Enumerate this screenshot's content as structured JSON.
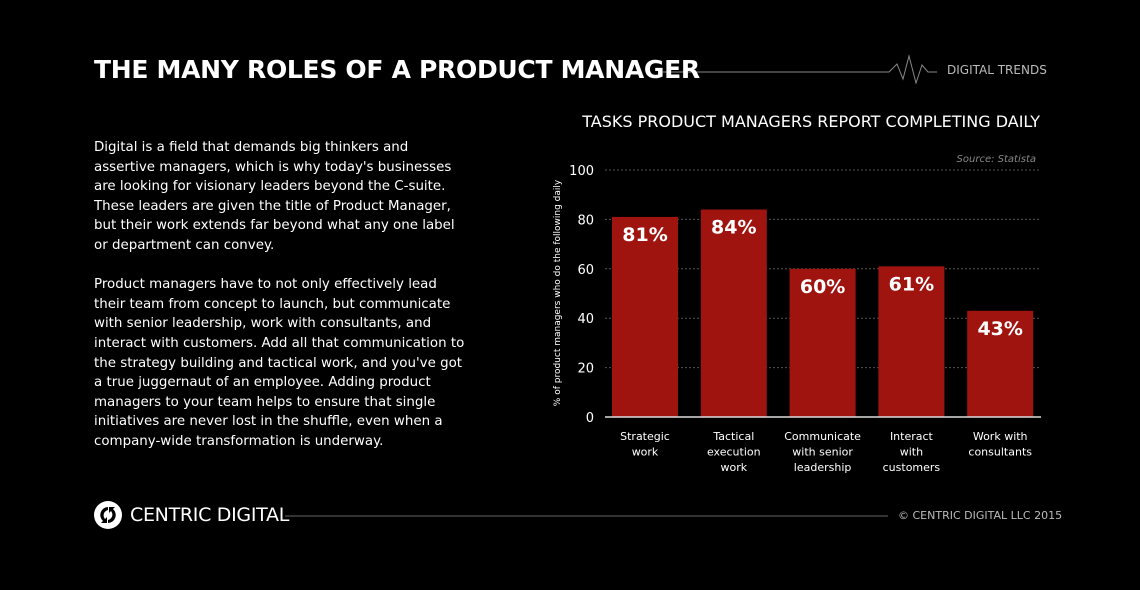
{
  "header": {
    "title": "THE MANY ROLES OF A PRODUCT MANAGER",
    "brand": "DIGITAL TRENDS"
  },
  "body": {
    "paragraphs": [
      "Digital is a field that demands big thinkers and assertive managers, which is why today's businesses are looking for visionary leaders beyond the C-suite. These leaders are given the title of Product Manager, but their work extends far beyond what any one label or department can convey.",
      "Product managers have to not only effectively lead their team from concept to launch, but communicate with senior leadership, work with consultants, and interact with customers. Add all that communication to the strategy building and tactical work, and you've got a true juggernaut of an employee. Adding product managers to your team helps to ensure that single initiatives are never lost in the shuffle, even when a company-wide transformation is underway."
    ]
  },
  "chart_data": {
    "type": "bar",
    "title": "TASKS PRODUCT MANAGERS REPORT COMPLETING DAILY",
    "source": "Source: Statista",
    "ylabel": "% of product managers who do the following daily",
    "xlabel": "",
    "categories": [
      [
        "Strategic",
        "work"
      ],
      [
        "Tactical",
        "execution",
        "work"
      ],
      [
        "Communicate",
        "with senior",
        "leadership"
      ],
      [
        "Interact",
        "with",
        "customers"
      ],
      [
        "Work with",
        "consultants"
      ]
    ],
    "values": [
      81,
      84,
      60,
      61,
      43
    ],
    "data_labels": [
      "81%",
      "84%",
      "60%",
      "61%",
      "43%"
    ],
    "ylim": [
      0,
      100
    ],
    "yticks": [
      "0",
      "20",
      "40",
      "60",
      "80",
      "100"
    ],
    "grid": true,
    "bar_color": "#a01410"
  },
  "footer": {
    "logo_text": "CENTRIC DIGITAL",
    "copyright": "© CENTRIC DIGITAL LLC 2015"
  }
}
